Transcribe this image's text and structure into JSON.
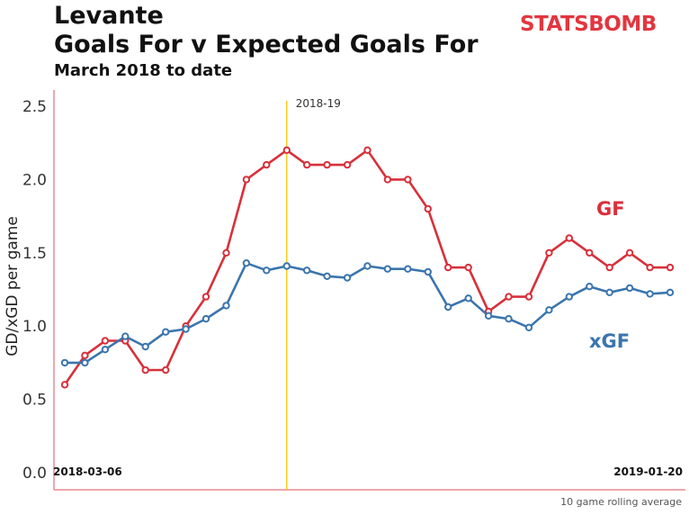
{
  "header": {
    "line1": "Levante",
    "line2": "Goals For v Expected Goals For",
    "line3": "March 2018 to date"
  },
  "logo_text": "STATSBOMB",
  "footnote": "10 game rolling average",
  "colors": {
    "gf": "#d8303b",
    "xgf": "#3b75ad",
    "season_line": "#f2c500",
    "axis": "#e88a90"
  },
  "chart_data": {
    "type": "line",
    "ylabel": "GD/xGD per game",
    "ylim": [
      0,
      2.5
    ],
    "yticks": [
      "0.0",
      "0.5",
      "1.0",
      "1.5",
      "2.0",
      "2.5"
    ],
    "start_date": "2018-03-06",
    "end_date": "2019-01-20",
    "season_marker": {
      "label": "2018-19",
      "x_index": 11
    },
    "series": [
      {
        "name": "GF",
        "values": [
          0.6,
          0.8,
          0.9,
          0.9,
          0.7,
          0.7,
          1.0,
          1.2,
          1.5,
          2.0,
          2.1,
          2.2,
          2.1,
          2.1,
          2.1,
          2.2,
          2.0,
          2.0,
          1.8,
          1.4,
          1.4,
          1.1,
          1.2,
          1.2,
          1.5,
          1.6,
          1.5,
          1.4,
          1.5,
          1.4,
          1.4
        ]
      },
      {
        "name": "xGF",
        "values": [
          0.75,
          0.75,
          0.84,
          0.93,
          0.86,
          0.96,
          0.98,
          1.05,
          1.14,
          1.43,
          1.38,
          1.41,
          1.38,
          1.34,
          1.33,
          1.41,
          1.39,
          1.39,
          1.37,
          1.13,
          1.19,
          1.07,
          1.05,
          0.99,
          1.11,
          1.2,
          1.27,
          1.23,
          1.26,
          1.22,
          1.23
        ]
      }
    ]
  }
}
